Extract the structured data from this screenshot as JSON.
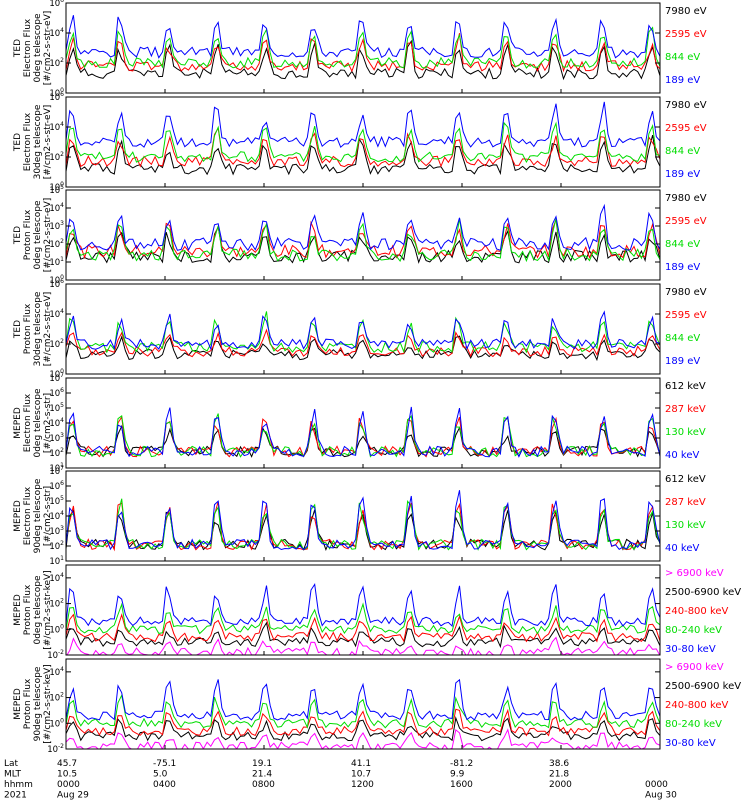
{
  "colors": {
    "black": "#000000",
    "red": "#ff0000",
    "green": "#00dd00",
    "blue": "#0000ff",
    "magenta": "#ff00ff"
  },
  "footer": {
    "row_labels": [
      "Lat",
      "MLT",
      "hhmm",
      "2021"
    ],
    "ticks": [
      {
        "lat": "45.7",
        "mlt": "10.5",
        "hhmm": "0000",
        "date": "Aug 29"
      },
      {
        "lat": "-75.1",
        "mlt": "5.0",
        "hhmm": "0400",
        "date": ""
      },
      {
        "lat": "19.1",
        "mlt": "21.4",
        "hhmm": "0800",
        "date": ""
      },
      {
        "lat": "41.1",
        "mlt": "10.7",
        "hhmm": "1200",
        "date": ""
      },
      {
        "lat": "-81.2",
        "mlt": "9.9",
        "hhmm": "1600",
        "date": ""
      },
      {
        "lat": "38.6",
        "mlt": "21.8",
        "hhmm": "2000",
        "date": ""
      },
      {
        "lat": "",
        "mlt": "",
        "hhmm": "0000",
        "date": "Aug 30"
      }
    ]
  },
  "chart_data": [
    {
      "type": "line",
      "ylabel": [
        "TED",
        "Electron Flux",
        "0deg telescope",
        "[#/cm2-s-str-eV]"
      ],
      "yticks": [
        {
          "exp": "0",
          "value": 1
        },
        {
          "exp": "2",
          "value": 100
        },
        {
          "exp": "4",
          "value": 10000
        },
        {
          "exp": "6",
          "value": 1000000
        }
      ],
      "ylim": [
        1,
        1000000
      ],
      "series": [
        {
          "name": "7980 eV",
          "color": "black",
          "base": 1.3,
          "amp": 2.2,
          "seed": 11
        },
        {
          "name": "2595 eV",
          "color": "red",
          "base": 1.8,
          "amp": 2.0,
          "seed": 12
        },
        {
          "name": "844 eV",
          "color": "green",
          "base": 2.0,
          "amp": 2.4,
          "seed": 13
        },
        {
          "name": "189 eV",
          "color": "blue",
          "base": 2.7,
          "amp": 2.5,
          "seed": 14
        }
      ]
    },
    {
      "type": "line",
      "ylabel": [
        "TED",
        "Electron Flux",
        "30deg telescope",
        "[#/cm2-s-str-eV]"
      ],
      "yticks": [
        {
          "exp": "0",
          "value": 1
        },
        {
          "exp": "2",
          "value": 100
        },
        {
          "exp": "4",
          "value": 10000
        },
        {
          "exp": "6",
          "value": 1000000
        }
      ],
      "ylim": [
        1,
        1000000
      ],
      "series": [
        {
          "name": "7980 eV",
          "color": "black",
          "base": 1.2,
          "amp": 2.2,
          "seed": 21
        },
        {
          "name": "2595 eV",
          "color": "red",
          "base": 1.7,
          "amp": 2.1,
          "seed": 22
        },
        {
          "name": "844 eV",
          "color": "green",
          "base": 2.0,
          "amp": 2.5,
          "seed": 23
        },
        {
          "name": "189 eV",
          "color": "blue",
          "base": 3.0,
          "amp": 2.6,
          "seed": 24
        }
      ]
    },
    {
      "type": "line",
      "ylabel": [
        "TED",
        "Proton Flux",
        "0deg telescope",
        "[#/cm2-s-str-eV]"
      ],
      "yticks": [
        {
          "exp": "0",
          "value": 1
        },
        {
          "exp": "1",
          "value": 10
        },
        {
          "exp": "2",
          "value": 100
        },
        {
          "exp": "3",
          "value": 1000
        },
        {
          "exp": "4",
          "value": 10000
        },
        {
          "exp": "5",
          "value": 100000
        }
      ],
      "ylim": [
        1,
        100000
      ],
      "series": [
        {
          "name": "7980 eV",
          "color": "black",
          "base": 1.3,
          "amp": 1.5,
          "seed": 31
        },
        {
          "name": "2595 eV",
          "color": "red",
          "base": 1.6,
          "amp": 1.8,
          "seed": 32
        },
        {
          "name": "844 eV",
          "color": "green",
          "base": 1.4,
          "amp": 1.9,
          "seed": 33
        },
        {
          "name": "189 eV",
          "color": "blue",
          "base": 2.0,
          "amp": 2.0,
          "seed": 34
        }
      ]
    },
    {
      "type": "line",
      "ylabel": [
        "TED",
        "Proton Flux",
        "30deg telescope",
        "[#/cm2-s-str-eV]"
      ],
      "yticks": [
        {
          "exp": "0",
          "value": 1
        },
        {
          "exp": "2",
          "value": 100
        },
        {
          "exp": "4",
          "value": 10000
        },
        {
          "exp": "6",
          "value": 1000000
        }
      ],
      "ylim": [
        1,
        1000000
      ],
      "series": [
        {
          "name": "7980 eV",
          "color": "black",
          "base": 1.3,
          "amp": 1.2,
          "seed": 41
        },
        {
          "name": "2595 eV",
          "color": "red",
          "base": 1.5,
          "amp": 1.4,
          "seed": 42
        },
        {
          "name": "844 eV",
          "color": "green",
          "base": 1.8,
          "amp": 2.3,
          "seed": 43
        },
        {
          "name": "189 eV",
          "color": "blue",
          "base": 2.0,
          "amp": 2.0,
          "seed": 44
        }
      ]
    },
    {
      "type": "line",
      "ylabel": [
        "MEPED",
        "Electron Flux",
        "0deg telescope",
        "[#/cm2-s-str]"
      ],
      "yticks": [
        {
          "exp": "1",
          "value": 10
        },
        {
          "exp": "2",
          "value": 100
        },
        {
          "exp": "3",
          "value": 1000
        },
        {
          "exp": "4",
          "value": 10000
        },
        {
          "exp": "5",
          "value": 100000
        },
        {
          "exp": "6",
          "value": 1000000
        },
        {
          "exp": "7",
          "value": 10000000
        }
      ],
      "ylim": [
        10,
        10000000
      ],
      "series": [
        {
          "name": "612 keV",
          "color": "black",
          "base": 2.1,
          "amp": 1.7,
          "seed": 51
        },
        {
          "name": "287 keV",
          "color": "red",
          "base": 2.1,
          "amp": 2.5,
          "seed": 52
        },
        {
          "name": "130 keV",
          "color": "green",
          "base": 2.1,
          "amp": 2.6,
          "seed": 53
        },
        {
          "name": "40 keV",
          "color": "blue",
          "base": 2.1,
          "amp": 3.0,
          "seed": 54
        }
      ]
    },
    {
      "type": "line",
      "ylabel": [
        "MEPED",
        "Electron Flux",
        "90deg telescope",
        "[#/cm2-s-str]"
      ],
      "yticks": [
        {
          "exp": "1",
          "value": 10
        },
        {
          "exp": "2",
          "value": 100
        },
        {
          "exp": "3",
          "value": 1000
        },
        {
          "exp": "4",
          "value": 10000
        },
        {
          "exp": "5",
          "value": 100000
        },
        {
          "exp": "6",
          "value": 1000000
        },
        {
          "exp": "7",
          "value": 10000000
        }
      ],
      "ylim": [
        10,
        10000000
      ],
      "series": [
        {
          "name": "612 keV",
          "color": "black",
          "base": 2.1,
          "amp": 2.4,
          "seed": 61
        },
        {
          "name": "287 keV",
          "color": "red",
          "base": 2.1,
          "amp": 3.0,
          "seed": 62
        },
        {
          "name": "130 keV",
          "color": "green",
          "base": 2.1,
          "amp": 3.3,
          "seed": 63
        },
        {
          "name": "40 keV",
          "color": "blue",
          "base": 2.1,
          "amp": 3.8,
          "seed": 64
        }
      ]
    },
    {
      "type": "line",
      "ylabel": [
        "MEPED",
        "Proton Flux",
        "0deg telescope",
        "[#/cm2-s-str-keV]"
      ],
      "yticks": [
        {
          "exp": "-2",
          "value": 0.01
        },
        {
          "exp": "0",
          "value": 1
        },
        {
          "exp": "2",
          "value": 100
        },
        {
          "exp": "4",
          "value": 10000
        }
      ],
      "ylim": [
        0.01,
        100000
      ],
      "series": [
        {
          "name": "> 6900 keV",
          "color": "magenta",
          "base": -1.8,
          "amp": 1.0,
          "seed": 71
        },
        {
          "name": "2500-6900 keV",
          "color": "black",
          "base": -1.0,
          "amp": 1.3,
          "seed": 72
        },
        {
          "name": "240-800 keV",
          "color": "red",
          "base": -0.6,
          "amp": 1.7,
          "seed": 73
        },
        {
          "name": "80-240 keV",
          "color": "green",
          "base": 0.0,
          "amp": 2.0,
          "seed": 74
        },
        {
          "name": "30-80 keV",
          "color": "blue",
          "base": 0.6,
          "amp": 3.0,
          "seed": 75
        }
      ]
    },
    {
      "type": "line",
      "ylabel": [
        "MEPED",
        "Proton Flux",
        "90deg telescope",
        "[#/cm2-s-str-keV]"
      ],
      "yticks": [
        {
          "exp": "-2",
          "value": 0.01
        },
        {
          "exp": "0",
          "value": 1
        },
        {
          "exp": "2",
          "value": 100
        },
        {
          "exp": "4",
          "value": 10000
        }
      ],
      "ylim": [
        0.01,
        100000
      ],
      "series": [
        {
          "name": "> 6900 keV",
          "color": "magenta",
          "base": -1.8,
          "amp": 1.2,
          "seed": 81
        },
        {
          "name": "2500-6900 keV",
          "color": "black",
          "base": -1.0,
          "amp": 1.4,
          "seed": 82
        },
        {
          "name": "240-800 keV",
          "color": "red",
          "base": -0.6,
          "amp": 1.8,
          "seed": 83
        },
        {
          "name": "80-240 keV",
          "color": "green",
          "base": 0.0,
          "amp": 2.2,
          "seed": 84
        },
        {
          "name": "30-80 keV",
          "color": "blue",
          "base": 0.6,
          "amp": 3.0,
          "seed": 85
        }
      ]
    }
  ]
}
